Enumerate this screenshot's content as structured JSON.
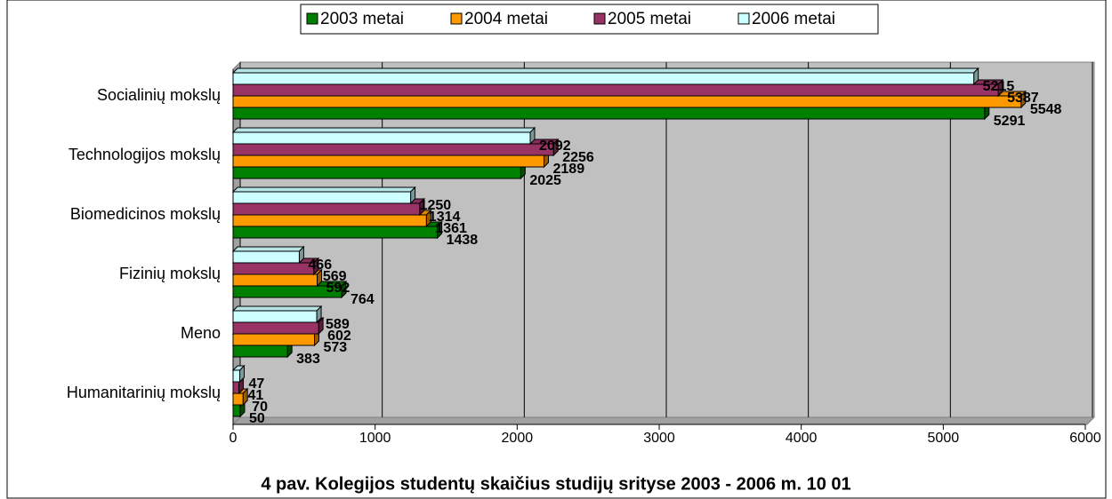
{
  "chart_data": {
    "type": "bar",
    "orientation": "horizontal",
    "title": "4 pav. Kolegijos studentų skaičius studijų srityse 2003 - 2006 m. 10 01",
    "categories": [
      "Socialinių mokslų",
      "Technologijos mokslų",
      "Biomedicinos mokslų",
      "Fizinių mokslų",
      "Meno",
      "Humanitarinių mokslų"
    ],
    "series": [
      {
        "name": "2003 metai",
        "color": "#008000",
        "values": [
          5291,
          2025,
          1438,
          764,
          383,
          50
        ]
      },
      {
        "name": "2004 metai",
        "color": "#FF9900",
        "values": [
          5548,
          2189,
          1361,
          592,
          573,
          70
        ]
      },
      {
        "name": "2005 metai",
        "color": "#993366",
        "values": [
          5387,
          2256,
          1314,
          569,
          602,
          41
        ]
      },
      {
        "name": "2006 metai",
        "color": "#CCFFFF",
        "values": [
          5215,
          2092,
          1250,
          466,
          589,
          47
        ]
      }
    ],
    "xlim": [
      0,
      6000
    ],
    "xticks": [
      0,
      1000,
      2000,
      3000,
      4000,
      5000,
      6000
    ],
    "grid": true,
    "legend": "top"
  }
}
